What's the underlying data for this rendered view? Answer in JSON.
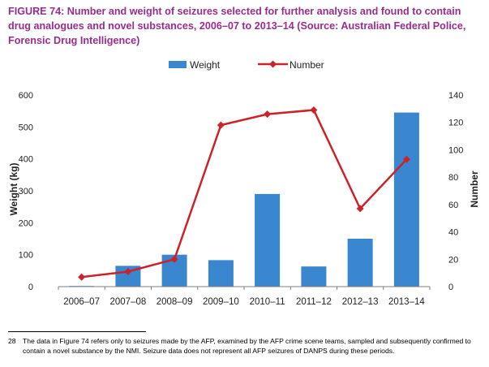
{
  "figure": {
    "title": "FIGURE 74: Number and weight of seizures selected for further analysis and found to contain drug analogues and novel substances, 2006–07 to 2013–14 (Source: Australian Federal Police, Forensic Drug Intelligence)"
  },
  "footnote": {
    "number": "28",
    "text": "The data in Figure 74 refers only to seizures made by the AFP, examined by the AFP crime scene teams, sampled and subsequently confirmed to contain a novel substance by the NMI. Seizure data does not represent all AFP seizures of DANPS during these periods."
  },
  "colors": {
    "bar": "#3a86cf",
    "line": "#cc2229",
    "title": "#9b2c8e"
  },
  "chart_data": {
    "type": "bar",
    "categories": [
      "2006–07",
      "2007–08",
      "2008–09",
      "2009–10",
      "2010–11",
      "2011–12",
      "2012–13",
      "2013–14"
    ],
    "series": [
      {
        "name": "Weight",
        "type": "bar",
        "axis": "left",
        "values": [
          2,
          65,
          100,
          83,
          290,
          63,
          150,
          545
        ]
      },
      {
        "name": "Number",
        "type": "line",
        "axis": "right",
        "values": [
          7,
          11,
          20,
          118,
          126,
          129,
          57,
          93
        ]
      }
    ],
    "ylabel": "Weight (kg)",
    "ylim": [
      0,
      600
    ],
    "yticks": [
      "0",
      "100",
      "200",
      "300",
      "400",
      "500",
      "600"
    ],
    "y2label": "Number",
    "y2lim": [
      0,
      140
    ],
    "y2ticks": [
      "0",
      "20",
      "40",
      "60",
      "80",
      "100",
      "120",
      "140"
    ],
    "legend": "top-center",
    "grid": false
  }
}
